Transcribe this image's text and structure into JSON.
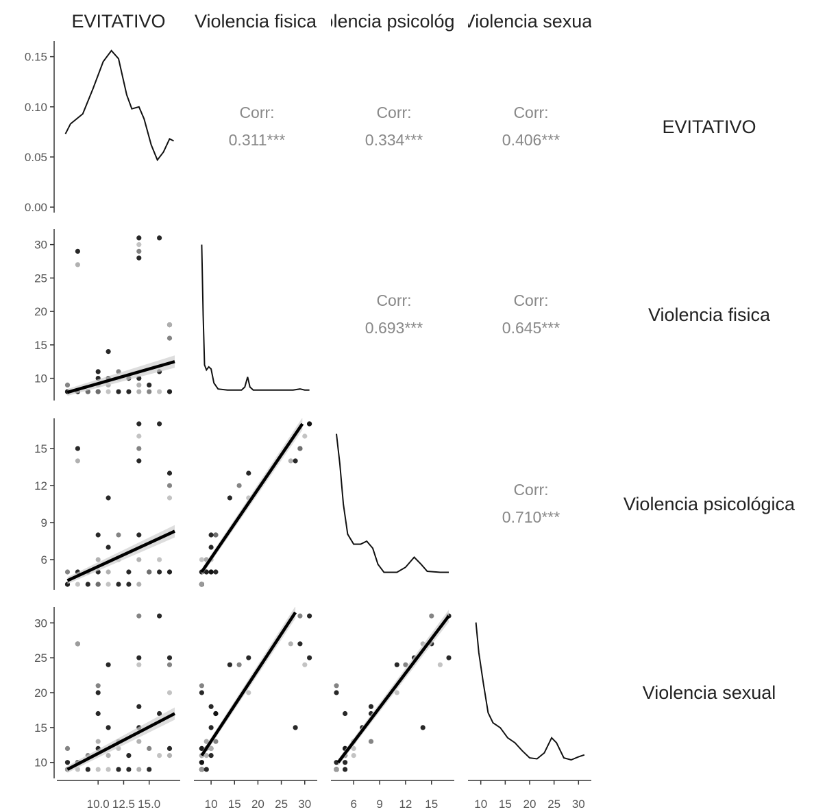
{
  "chart_data": {
    "type": "scatter",
    "variables": [
      "EVITATIVO",
      "Violencia fisica",
      "Violencia psicológica",
      "Violencia sexual"
    ],
    "ranges": [
      [
        6.5,
        17.5
      ],
      [
        7.5,
        31.5
      ],
      [
        4,
        17
      ],
      [
        8.5,
        31.5
      ]
    ],
    "ticks": [
      [
        10.0,
        12.5,
        15.0
      ],
      [
        10,
        15,
        20,
        25,
        30
      ],
      [
        6,
        9,
        12,
        15
      ],
      [
        10,
        15,
        20,
        25,
        30
      ]
    ],
    "tick_labels": [
      [
        "10.0",
        "12.5",
        "15.0"
      ],
      [
        "10",
        "15",
        "20",
        "25",
        "30"
      ],
      [
        "6",
        "9",
        "12",
        "15"
      ],
      [
        "10",
        "15",
        "20",
        "25",
        "30"
      ]
    ],
    "density_axis": {
      "ylim": [
        0,
        0.16
      ],
      "ticks": [
        0.0,
        0.05,
        0.1,
        0.15
      ],
      "tick_labels": [
        "0.00",
        "0.05",
        "0.10",
        "0.15"
      ]
    },
    "densities": [
      [
        [
          6.8,
          0.073
        ],
        [
          7.3,
          0.083
        ],
        [
          8.5,
          0.093
        ],
        [
          9.5,
          0.118
        ],
        [
          10.5,
          0.145
        ],
        [
          11.3,
          0.156
        ],
        [
          12.0,
          0.148
        ],
        [
          12.8,
          0.112
        ],
        [
          13.3,
          0.098
        ],
        [
          14.0,
          0.1
        ],
        [
          14.5,
          0.088
        ],
        [
          15.2,
          0.062
        ],
        [
          15.8,
          0.047
        ],
        [
          16.4,
          0.055
        ],
        [
          17.0,
          0.068
        ],
        [
          17.4,
          0.066
        ]
      ],
      [
        [
          8.0,
          0.15
        ],
        [
          8.3,
          0.08
        ],
        [
          8.6,
          0.03
        ],
        [
          9.0,
          0.025
        ],
        [
          9.5,
          0.028
        ],
        [
          10.0,
          0.026
        ],
        [
          10.6,
          0.012
        ],
        [
          11.5,
          0.006
        ],
        [
          13.5,
          0.005
        ],
        [
          16.5,
          0.005
        ],
        [
          17.2,
          0.008
        ],
        [
          17.8,
          0.018
        ],
        [
          18.3,
          0.008
        ],
        [
          19.0,
          0.005
        ],
        [
          27.5,
          0.005
        ],
        [
          29.0,
          0.006
        ],
        [
          30.0,
          0.005
        ],
        [
          31.0,
          0.005
        ]
      ],
      [
        [
          4.0,
          0.15
        ],
        [
          4.4,
          0.12
        ],
        [
          4.8,
          0.08
        ],
        [
          5.3,
          0.05
        ],
        [
          6.0,
          0.04
        ],
        [
          6.8,
          0.04
        ],
        [
          7.5,
          0.043
        ],
        [
          8.2,
          0.036
        ],
        [
          8.8,
          0.02
        ],
        [
          9.5,
          0.012
        ],
        [
          11.0,
          0.012
        ],
        [
          12.0,
          0.017
        ],
        [
          13.0,
          0.027
        ],
        [
          13.8,
          0.02
        ],
        [
          14.5,
          0.013
        ],
        [
          16.0,
          0.012
        ],
        [
          17.0,
          0.012
        ]
      ],
      [
        [
          9.0,
          0.15
        ],
        [
          9.6,
          0.12
        ],
        [
          10.5,
          0.09
        ],
        [
          11.5,
          0.06
        ],
        [
          12.5,
          0.05
        ],
        [
          14.0,
          0.045
        ],
        [
          15.5,
          0.035
        ],
        [
          17.0,
          0.03
        ],
        [
          18.5,
          0.022
        ],
        [
          20.0,
          0.015
        ],
        [
          21.5,
          0.014
        ],
        [
          23.0,
          0.02
        ],
        [
          24.5,
          0.035
        ],
        [
          25.5,
          0.03
        ],
        [
          27.0,
          0.015
        ],
        [
          28.5,
          0.013
        ],
        [
          30.0,
          0.016
        ],
        [
          31.2,
          0.018
        ]
      ]
    ],
    "correlations": [
      {
        "row": 0,
        "col": 1,
        "label": "Corr:",
        "value": "0.311***"
      },
      {
        "row": 0,
        "col": 2,
        "label": "Corr:",
        "value": "0.334***"
      },
      {
        "row": 0,
        "col": 3,
        "label": "Corr:",
        "value": "0.406***"
      },
      {
        "row": 1,
        "col": 2,
        "label": "Corr:",
        "value": "0.693***"
      },
      {
        "row": 1,
        "col": 3,
        "label": "Corr:",
        "value": "0.645***"
      },
      {
        "row": 2,
        "col": 3,
        "label": "Corr:",
        "value": "0.710***"
      }
    ],
    "points": [
      {
        "e": 7,
        "f": 8,
        "p": 4,
        "s": 9
      },
      {
        "e": 7,
        "f": 8,
        "p": 4,
        "s": 9
      },
      {
        "e": 7,
        "f": 8,
        "p": 4,
        "s": 10
      },
      {
        "e": 7,
        "f": 9,
        "p": 5,
        "s": 12
      },
      {
        "e": 8,
        "f": 8,
        "p": 4,
        "s": 9
      },
      {
        "e": 8,
        "f": 8,
        "p": 5,
        "s": 10
      },
      {
        "e": 8,
        "f": 29,
        "p": 15,
        "s": 27
      },
      {
        "e": 8,
        "f": 27,
        "p": 14,
        "s": 27
      },
      {
        "e": 9,
        "f": 8,
        "p": 4,
        "s": 9
      },
      {
        "e": 9,
        "f": 8,
        "p": 5,
        "s": 11
      },
      {
        "e": 10,
        "f": 8,
        "p": 4,
        "s": 9
      },
      {
        "e": 10,
        "f": 10,
        "p": 5,
        "s": 12
      },
      {
        "e": 10,
        "f": 11,
        "p": 8,
        "s": 17
      },
      {
        "e": 10,
        "f": 9,
        "p": 6,
        "s": 13
      },
      {
        "e": 10,
        "f": 8,
        "p": 4,
        "s": 20
      },
      {
        "e": 10,
        "f": 8,
        "p": 4,
        "s": 21
      },
      {
        "e": 11,
        "f": 8,
        "p": 4,
        "s": 9
      },
      {
        "e": 11,
        "f": 14,
        "p": 11,
        "s": 24
      },
      {
        "e": 11,
        "f": 10,
        "p": 7,
        "s": 15
      },
      {
        "e": 11,
        "f": 9,
        "p": 5,
        "s": 11
      },
      {
        "e": 12,
        "f": 8,
        "p": 4,
        "s": 9
      },
      {
        "e": 12,
        "f": 11,
        "p": 8,
        "s": 13
      },
      {
        "e": 12,
        "f": 10,
        "p": 6,
        "s": 12
      },
      {
        "e": 13,
        "f": 8,
        "p": 4,
        "s": 9
      },
      {
        "e": 13,
        "f": 10,
        "p": 5,
        "s": 11
      },
      {
        "e": 14,
        "f": 8,
        "p": 4,
        "s": 9
      },
      {
        "e": 14,
        "f": 10,
        "p": 8,
        "s": 18
      },
      {
        "e": 14,
        "f": 29,
        "p": 15,
        "s": 31
      },
      {
        "e": 14,
        "f": 30,
        "p": 16,
        "s": 24
      },
      {
        "e": 14,
        "f": 31,
        "p": 17,
        "s": 25
      },
      {
        "e": 14,
        "f": 28,
        "p": 14,
        "s": 15
      },
      {
        "e": 14,
        "f": 9,
        "p": 6,
        "s": 13
      },
      {
        "e": 15,
        "f": 9,
        "p": 5,
        "s": 9
      },
      {
        "e": 15,
        "f": 8,
        "p": 5,
        "s": 12
      },
      {
        "e": 16,
        "f": 8,
        "p": 6,
        "s": 11
      },
      {
        "e": 16,
        "f": 31,
        "p": 17,
        "s": 31
      },
      {
        "e": 16,
        "f": 11,
        "p": 5,
        "s": 17
      },
      {
        "e": 17,
        "f": 8,
        "p": 5,
        "s": 11
      },
      {
        "e": 17,
        "f": 18,
        "p": 13,
        "s": 25
      },
      {
        "e": 17,
        "f": 16,
        "p": 12,
        "s": 24
      },
      {
        "e": 17,
        "f": 18,
        "p": 11,
        "s": 20
      },
      {
        "e": 17,
        "f": 8,
        "p": 5,
        "s": 12
      }
    ],
    "fits": {
      "1-0": [
        7.0,
        17.5,
        7.9,
        12.5
      ],
      "2-0": [
        7.0,
        17.5,
        4.3,
        8.3
      ],
      "2-1": [
        8.0,
        29.5,
        5.0,
        17.0
      ],
      "3-0": [
        7.0,
        17.5,
        9.0,
        17.0
      ],
      "3-1": [
        8.0,
        28.0,
        11.0,
        31.5
      ],
      "3-2": [
        4.2,
        17.0,
        10.0,
        31.0
      ]
    },
    "xlabel": "",
    "ylabel": ""
  }
}
